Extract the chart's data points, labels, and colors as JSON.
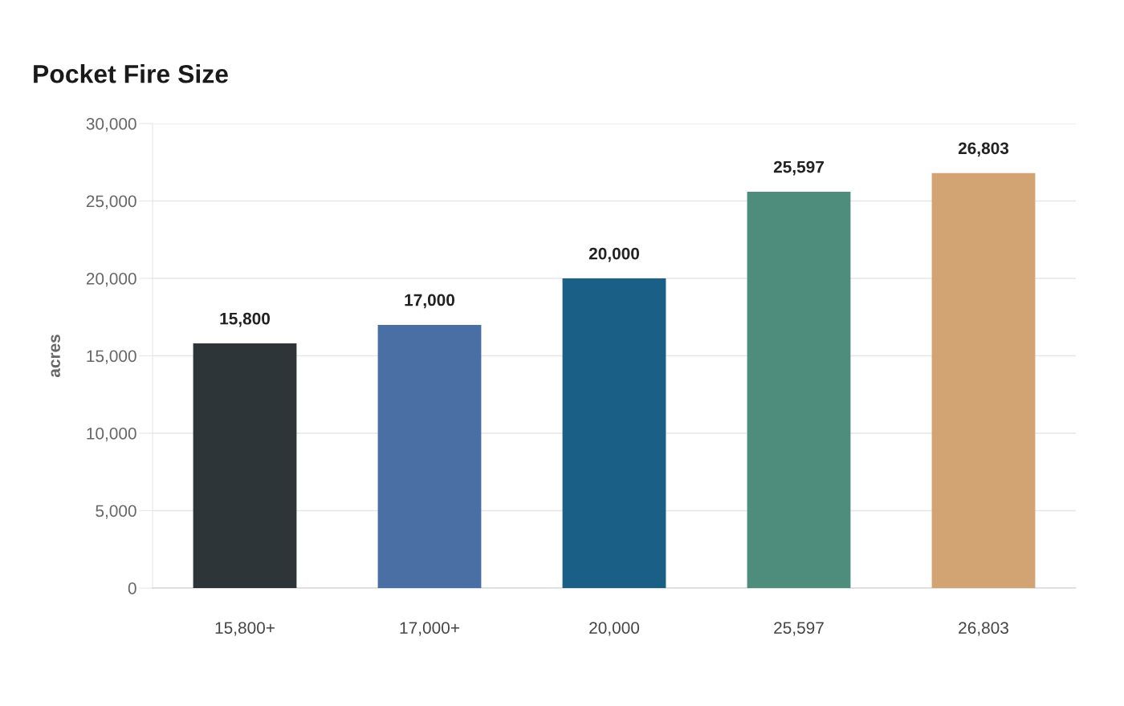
{
  "chart_data": {
    "type": "bar",
    "title": "Pocket Fire Size",
    "ylabel": "acres",
    "categories": [
      "15,800+",
      "17,000+",
      "20,000",
      "25,597",
      "26,803"
    ],
    "values": [
      15800,
      17000,
      20000,
      25597,
      26803
    ],
    "colors": [
      "#2d3538",
      "#4a6fa5",
      "#1a5f86",
      "#4e8c7b",
      "#d3a473"
    ],
    "ylim": [
      0,
      30000
    ],
    "yticks": [
      {
        "value": 0,
        "label": "0"
      },
      {
        "value": 5000,
        "label": "5,000"
      },
      {
        "value": 10000,
        "label": "10,000"
      },
      {
        "value": 15000,
        "label": "15,000"
      },
      {
        "value": 20000,
        "label": "20,000"
      },
      {
        "value": 25000,
        "label": "25,000"
      },
      {
        "value": 30000,
        "label": "30,000"
      }
    ],
    "value_labels": [
      "15,800",
      "17,000",
      "20,000",
      "25,597",
      "26,803"
    ],
    "grid": "y"
  }
}
